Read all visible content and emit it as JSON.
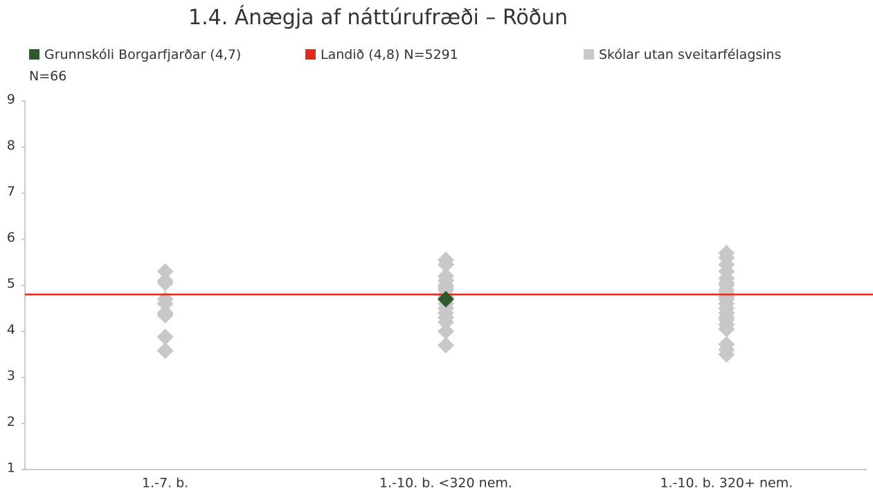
{
  "chart_data": {
    "type": "strip",
    "title": "1.4. Ánægja af náttúrufræði – Röðun",
    "categories": [
      "1.-7. b.",
      "1.-10. b. <320 nem.",
      "1.-10. b. 320+ nem."
    ],
    "ylim": [
      1,
      9
    ],
    "yticks": [
      1,
      2,
      3,
      4,
      5,
      6,
      7,
      8,
      9
    ],
    "series": [
      {
        "name": "Grunnskóli Borgarfjarðar (4,7)",
        "color": "#2e5a2e",
        "kind": "points",
        "values": [
          null,
          4.7,
          null
        ]
      },
      {
        "name": "Landið (4,8) N=5291",
        "color": "#e02a1a",
        "kind": "hline",
        "value": 4.8
      },
      {
        "name": "Skólar utan sveitarfélagsins N=66",
        "color": "#c8c8c8",
        "kind": "strip",
        "values": [
          [
            5.3,
            5.1,
            5.05,
            4.7,
            4.6,
            4.4,
            4.35,
            3.88,
            3.58
          ],
          [
            5.55,
            5.45,
            5.2,
            5.1,
            5.0,
            4.95,
            4.9,
            4.8,
            4.75,
            4.6,
            4.5,
            4.4,
            4.3,
            4.2,
            4.0,
            3.7
          ],
          [
            5.7,
            5.6,
            5.45,
            5.3,
            5.15,
            5.05,
            5.0,
            4.9,
            4.85,
            4.75,
            4.7,
            4.6,
            4.5,
            4.4,
            4.3,
            4.25,
            4.15,
            4.05,
            3.72,
            3.6,
            3.5
          ]
        ]
      }
    ]
  }
}
